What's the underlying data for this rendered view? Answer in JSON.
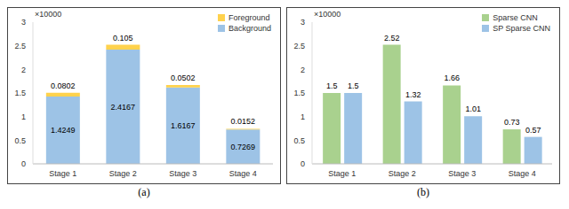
{
  "chart_data": [
    {
      "type": "bar",
      "stacked": true,
      "xlabel": "(a)",
      "annotations": [
        "×10000"
      ],
      "categories": [
        "Stage 1",
        "Stage 2",
        "Stage 3",
        "Stage 4"
      ],
      "series": [
        {
          "name": "Background",
          "color": "#9DC3E6",
          "values": [
            1.4249,
            2.4167,
            1.6167,
            0.7269
          ]
        },
        {
          "name": "Foreground",
          "color": "#FFD24D",
          "values": [
            0.0802,
            0.105,
            0.0502,
            0.0152
          ]
        }
      ],
      "ylim": [
        0,
        3
      ],
      "yticks": [
        0,
        0.5,
        1,
        1.5,
        2,
        2.5,
        3
      ],
      "data_labels": true,
      "legend": "upper right",
      "grid": false
    },
    {
      "type": "bar",
      "xlabel": "(b)",
      "annotations": [
        "×10000"
      ],
      "categories": [
        "Stage 1",
        "Stage 2",
        "Stage 3",
        "Stage 4"
      ],
      "series": [
        {
          "name": "Sparse CNN",
          "color": "#A9D18E",
          "values": [
            1.5,
            2.52,
            1.66,
            0.73
          ]
        },
        {
          "name": "SP Sparse CNN",
          "color": "#9DC3E6",
          "values": [
            1.5,
            1.32,
            1.01,
            0.57
          ]
        }
      ],
      "ylim": [
        0,
        3
      ],
      "yticks": [
        0,
        0.5,
        1,
        1.5,
        2,
        2.5,
        3
      ],
      "data_labels": true,
      "legend": "upper right",
      "grid": false
    }
  ]
}
